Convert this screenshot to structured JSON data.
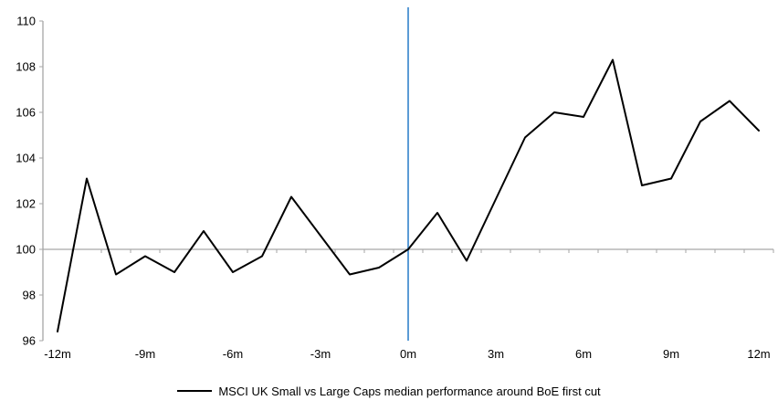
{
  "chart_data": {
    "type": "line",
    "title": "",
    "xlabel": "",
    "ylabel": "",
    "x_months": [
      -12,
      -11,
      -10,
      -9,
      -8,
      -7,
      -6,
      -5,
      -4,
      -3,
      -2,
      -1,
      0,
      1,
      2,
      3,
      4,
      5,
      6,
      7,
      8,
      9,
      10,
      11,
      12
    ],
    "categories": [
      "-12m",
      "-11m",
      "-10m",
      "-9m",
      "-8m",
      "-7m",
      "-6m",
      "-5m",
      "-4m",
      "-3m",
      "-2m",
      "-1m",
      "0m",
      "1m",
      "2m",
      "3m",
      "4m",
      "5m",
      "6m",
      "7m",
      "8m",
      "9m",
      "10m",
      "11m",
      "12m"
    ],
    "series": [
      {
        "name": "MSCI UK Small vs Large Caps median performance around BoE first cut",
        "values": [
          96.4,
          103.1,
          98.9,
          99.7,
          99.0,
          100.8,
          99.0,
          99.7,
          102.3,
          100.6,
          98.9,
          99.2,
          100.0,
          101.6,
          99.5,
          102.2,
          104.9,
          106.0,
          105.8,
          108.3,
          102.8,
          103.1,
          105.6,
          106.5,
          105.2
        ]
      }
    ],
    "ylim": [
      96,
      110
    ],
    "yticks": [
      96,
      98,
      100,
      102,
      104,
      106,
      108,
      110
    ],
    "xticks": [
      {
        "label": "-12m",
        "month": -12
      },
      {
        "label": "-9m",
        "month": -9
      },
      {
        "label": "-6m",
        "month": -6
      },
      {
        "label": "-3m",
        "month": -3
      },
      {
        "label": "0m",
        "month": 0
      },
      {
        "label": "3m",
        "month": 3
      },
      {
        "label": "6m",
        "month": 6
      },
      {
        "label": "9m",
        "month": 9
      },
      {
        "label": "12m",
        "month": 12
      }
    ],
    "baseline_value": 100,
    "event_line_month": 0,
    "grid": false,
    "legend_position": "bottom"
  },
  "colors": {
    "series_line": "#000000",
    "axis": "#A6A6A6",
    "event_line": "#5B9BD5",
    "text": "#000000",
    "background": "#FFFFFF"
  }
}
